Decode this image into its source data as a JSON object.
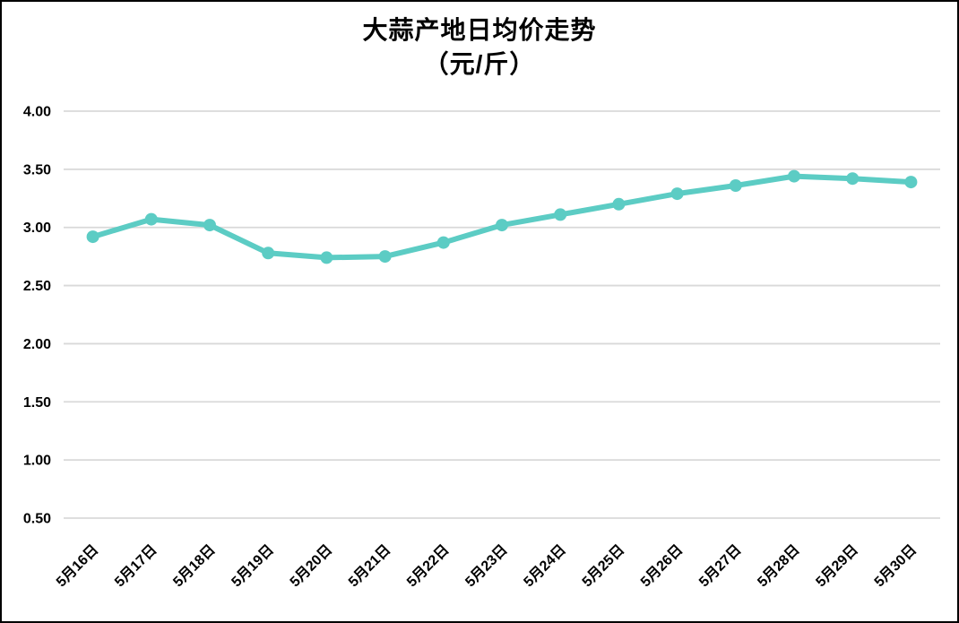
{
  "chart_data": {
    "type": "line",
    "title": "大蒜产地日均价走势",
    "subtitle": "（元/斤）",
    "categories": [
      "5月16日",
      "5月17日",
      "5月18日",
      "5月19日",
      "5月20日",
      "5月21日",
      "5月22日",
      "5月23日",
      "5月24日",
      "5月25日",
      "5月26日",
      "5月27日",
      "5月28日",
      "5月29日",
      "5月30日"
    ],
    "values": [
      2.92,
      3.07,
      3.02,
      2.78,
      2.74,
      2.75,
      2.87,
      3.02,
      3.11,
      3.2,
      3.29,
      3.36,
      3.44,
      3.42,
      3.39
    ],
    "ylim": [
      0.5,
      4.0
    ],
    "ytick_step": 0.5,
    "ytick_labels": [
      "4.00",
      "3.50",
      "3.00",
      "2.50",
      "2.00",
      "1.50",
      "1.00",
      "0.50"
    ],
    "xlabel": "",
    "ylabel": "",
    "grid": "horizontal",
    "legend": "none",
    "marker": "circle",
    "colors": {
      "line": "#5CCCC4",
      "gridline": "#D9D9D9",
      "text": "#000000",
      "background": "#FFFFFF",
      "frame_border": "#000000"
    }
  }
}
